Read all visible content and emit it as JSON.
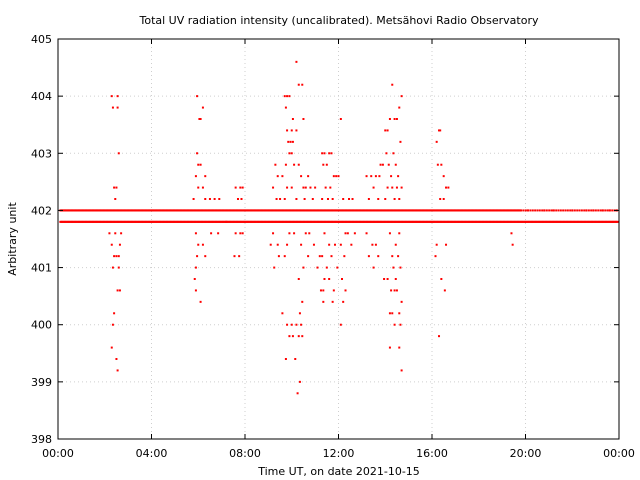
{
  "chart_data": {
    "type": "scatter",
    "title": "Total UV radiation intensity (uncalibrated). Metsähovi Radio Observatory",
    "xlabel": "Time UT, on date 2021-10-15",
    "ylabel": "Arbitrary unit",
    "x_unit": "hours UT",
    "xlim": [
      0,
      24
    ],
    "ylim": [
      398,
      405
    ],
    "x_ticks": [
      0,
      4,
      8,
      12,
      16,
      20,
      24
    ],
    "x_tick_labels": [
      "00:00",
      "04:00",
      "08:00",
      "12:00",
      "16:00",
      "20:00",
      "00:00"
    ],
    "y_ticks": [
      398,
      399,
      400,
      401,
      402,
      403,
      404,
      405
    ],
    "y_tick_labels": [
      "398",
      "399",
      "400",
      "401",
      "402",
      "403",
      "404",
      "405"
    ],
    "grid": true,
    "color": "#ff0000",
    "baseline_levels": [
      401.8,
      402.0
    ],
    "sample_interval_hours": 0.0333,
    "series": [
      {
        "values": [
          [
            2.3,
            404.0
          ],
          [
            2.35,
            403.8
          ],
          [
            2.55,
            404.0
          ],
          [
            2.55,
            403.8
          ],
          [
            2.6,
            403.0
          ],
          [
            2.4,
            402.4
          ],
          [
            2.5,
            402.4
          ],
          [
            2.45,
            401.6
          ],
          [
            2.4,
            401.2
          ],
          [
            2.35,
            401.0
          ],
          [
            2.5,
            401.2
          ],
          [
            2.6,
            401.0
          ],
          [
            2.55,
            400.6
          ],
          [
            2.65,
            400.6
          ],
          [
            2.4,
            400.2
          ],
          [
            2.35,
            400.0
          ],
          [
            2.3,
            399.6
          ],
          [
            2.5,
            399.4
          ],
          [
            2.55,
            399.2
          ],
          [
            2.3,
            401.4
          ],
          [
            2.65,
            401.4
          ],
          [
            2.6,
            401.2
          ],
          [
            2.2,
            401.6
          ],
          [
            2.7,
            401.6
          ],
          [
            2.45,
            402.2
          ],
          [
            5.95,
            404.0
          ],
          [
            6.05,
            403.6
          ],
          [
            6.1,
            403.6
          ],
          [
            6.2,
            403.8
          ],
          [
            5.95,
            403.0
          ],
          [
            6.0,
            402.8
          ],
          [
            6.1,
            402.8
          ],
          [
            6.3,
            402.6
          ],
          [
            5.9,
            402.6
          ],
          [
            6.2,
            402.4
          ],
          [
            6.0,
            402.4
          ],
          [
            6.3,
            402.2
          ],
          [
            5.8,
            402.2
          ],
          [
            5.9,
            401.6
          ],
          [
            6.0,
            401.4
          ],
          [
            6.2,
            401.4
          ],
          [
            5.95,
            401.2
          ],
          [
            5.9,
            401.0
          ],
          [
            5.85,
            400.8
          ],
          [
            5.9,
            400.6
          ],
          [
            6.1,
            400.4
          ],
          [
            6.3,
            401.2
          ],
          [
            6.5,
            402.2
          ],
          [
            6.7,
            402.2
          ],
          [
            6.9,
            402.2
          ],
          [
            6.55,
            401.6
          ],
          [
            6.85,
            401.6
          ],
          [
            7.2,
            401.8
          ],
          [
            7.6,
            402.4
          ],
          [
            7.8,
            402.4
          ],
          [
            7.9,
            402.4
          ],
          [
            7.7,
            402.2
          ],
          [
            7.85,
            402.2
          ],
          [
            7.6,
            401.6
          ],
          [
            7.8,
            401.6
          ],
          [
            7.9,
            401.6
          ],
          [
            7.75,
            401.2
          ],
          [
            7.55,
            401.2
          ],
          [
            9.3,
            402.8
          ],
          [
            9.4,
            402.6
          ],
          [
            9.2,
            402.4
          ],
          [
            9.35,
            402.2
          ],
          [
            9.5,
            402.2
          ],
          [
            9.2,
            401.6
          ],
          [
            9.4,
            401.4
          ],
          [
            9.1,
            401.4
          ],
          [
            9.25,
            401.0
          ],
          [
            9.45,
            401.2
          ],
          [
            9.7,
            404.0
          ],
          [
            9.8,
            404.0
          ],
          [
            9.9,
            404.0
          ],
          [
            9.75,
            403.8
          ],
          [
            10.05,
            403.6
          ],
          [
            10.2,
            404.6
          ],
          [
            10.3,
            404.2
          ],
          [
            10.45,
            404.2
          ],
          [
            10.5,
            403.6
          ],
          [
            9.8,
            403.4
          ],
          [
            10.0,
            403.4
          ],
          [
            10.2,
            403.4
          ],
          [
            9.85,
            403.2
          ],
          [
            9.95,
            403.2
          ],
          [
            10.05,
            403.2
          ],
          [
            9.9,
            403.0
          ],
          [
            10.0,
            403.0
          ],
          [
            9.75,
            402.8
          ],
          [
            10.1,
            402.8
          ],
          [
            10.3,
            402.8
          ],
          [
            9.6,
            402.6
          ],
          [
            10.4,
            402.6
          ],
          [
            9.8,
            402.4
          ],
          [
            10.0,
            402.4
          ],
          [
            10.5,
            402.4
          ],
          [
            10.6,
            402.4
          ],
          [
            9.7,
            402.2
          ],
          [
            10.2,
            402.2
          ],
          [
            10.55,
            402.2
          ],
          [
            9.9,
            401.6
          ],
          [
            10.1,
            401.6
          ],
          [
            10.6,
            401.6
          ],
          [
            9.8,
            401.4
          ],
          [
            10.4,
            401.4
          ],
          [
            10.7,
            401.2
          ],
          [
            9.7,
            401.2
          ],
          [
            10.5,
            401.0
          ],
          [
            10.3,
            400.8
          ],
          [
            10.45,
            400.4
          ],
          [
            9.6,
            400.2
          ],
          [
            10.2,
            400.0
          ],
          [
            10.4,
            400.0
          ],
          [
            9.8,
            400.0
          ],
          [
            10.0,
            400.0
          ],
          [
            10.35,
            400.2
          ],
          [
            9.9,
            399.8
          ],
          [
            10.05,
            399.8
          ],
          [
            10.3,
            399.8
          ],
          [
            10.45,
            399.8
          ],
          [
            9.75,
            399.4
          ],
          [
            10.15,
            399.4
          ],
          [
            10.35,
            399.0
          ],
          [
            10.25,
            398.8
          ],
          [
            10.7,
            402.6
          ],
          [
            10.8,
            402.4
          ],
          [
            10.9,
            402.2
          ],
          [
            11.0,
            402.4
          ],
          [
            10.75,
            401.6
          ],
          [
            10.95,
            401.4
          ],
          [
            11.1,
            401.0
          ],
          [
            11.2,
            401.2
          ],
          [
            11.3,
            403.0
          ],
          [
            11.4,
            403.0
          ],
          [
            11.6,
            403.0
          ],
          [
            11.7,
            403.0
          ],
          [
            11.35,
            402.8
          ],
          [
            11.5,
            402.8
          ],
          [
            11.8,
            402.6
          ],
          [
            11.45,
            402.4
          ],
          [
            11.65,
            402.4
          ],
          [
            11.9,
            402.6
          ],
          [
            12.0,
            402.6
          ],
          [
            11.3,
            402.2
          ],
          [
            11.55,
            402.2
          ],
          [
            11.75,
            402.2
          ],
          [
            11.4,
            401.6
          ],
          [
            11.6,
            401.4
          ],
          [
            11.85,
            401.4
          ],
          [
            11.3,
            401.2
          ],
          [
            11.7,
            401.2
          ],
          [
            11.5,
            401.0
          ],
          [
            11.95,
            401.0
          ],
          [
            11.4,
            400.8
          ],
          [
            11.6,
            400.8
          ],
          [
            11.25,
            400.6
          ],
          [
            11.35,
            400.6
          ],
          [
            11.8,
            400.6
          ],
          [
            11.35,
            400.4
          ],
          [
            11.75,
            400.4
          ],
          [
            12.1,
            403.6
          ],
          [
            12.2,
            402.2
          ],
          [
            12.3,
            401.6
          ],
          [
            12.1,
            401.4
          ],
          [
            12.25,
            401.2
          ],
          [
            12.15,
            400.8
          ],
          [
            12.3,
            400.6
          ],
          [
            12.2,
            400.4
          ],
          [
            12.1,
            400.0
          ],
          [
            12.45,
            402.2
          ],
          [
            12.6,
            402.2
          ],
          [
            12.4,
            401.6
          ],
          [
            12.55,
            401.4
          ],
          [
            12.7,
            401.6
          ],
          [
            13.2,
            402.6
          ],
          [
            13.4,
            402.6
          ],
          [
            13.6,
            402.6
          ],
          [
            13.5,
            402.4
          ],
          [
            13.3,
            402.2
          ],
          [
            13.7,
            402.2
          ],
          [
            13.2,
            401.6
          ],
          [
            13.45,
            401.4
          ],
          [
            13.6,
            401.4
          ],
          [
            13.3,
            401.2
          ],
          [
            13.5,
            401.0
          ],
          [
            13.7,
            401.2
          ],
          [
            13.8,
            402.8
          ],
          [
            13.9,
            402.8
          ],
          [
            13.75,
            402.6
          ],
          [
            14.0,
            403.4
          ],
          [
            14.1,
            403.4
          ],
          [
            14.2,
            403.6
          ],
          [
            14.3,
            404.2
          ],
          [
            14.4,
            403.6
          ],
          [
            14.5,
            403.6
          ],
          [
            14.6,
            403.8
          ],
          [
            14.7,
            404.0
          ],
          [
            14.05,
            403.0
          ],
          [
            14.35,
            403.0
          ],
          [
            14.65,
            403.2
          ],
          [
            14.15,
            402.8
          ],
          [
            14.45,
            402.8
          ],
          [
            14.25,
            402.6
          ],
          [
            14.55,
            402.6
          ],
          [
            14.1,
            402.4
          ],
          [
            14.3,
            402.4
          ],
          [
            14.5,
            402.4
          ],
          [
            14.7,
            402.4
          ],
          [
            14.0,
            402.2
          ],
          [
            14.4,
            402.2
          ],
          [
            14.6,
            402.2
          ],
          [
            14.2,
            401.6
          ],
          [
            14.45,
            401.4
          ],
          [
            14.6,
            401.6
          ],
          [
            14.3,
            401.2
          ],
          [
            14.55,
            401.2
          ],
          [
            14.35,
            401.0
          ],
          [
            14.65,
            401.0
          ],
          [
            14.45,
            400.8
          ],
          [
            14.4,
            400.6
          ],
          [
            14.5,
            400.6
          ],
          [
            14.7,
            400.4
          ],
          [
            14.2,
            400.2
          ],
          [
            14.3,
            400.2
          ],
          [
            14.6,
            400.2
          ],
          [
            14.4,
            400.0
          ],
          [
            14.65,
            400.0
          ],
          [
            14.2,
            399.6
          ],
          [
            14.6,
            399.6
          ],
          [
            14.7,
            399.2
          ],
          [
            13.95,
            400.8
          ],
          [
            14.1,
            400.8
          ],
          [
            14.25,
            400.6
          ],
          [
            16.2,
            403.2
          ],
          [
            16.3,
            403.4
          ],
          [
            16.35,
            403.4
          ],
          [
            16.25,
            402.8
          ],
          [
            16.4,
            402.8
          ],
          [
            16.5,
            402.6
          ],
          [
            16.6,
            402.4
          ],
          [
            16.7,
            402.4
          ],
          [
            16.35,
            402.2
          ],
          [
            16.5,
            402.2
          ],
          [
            16.2,
            401.4
          ],
          [
            16.6,
            401.4
          ],
          [
            16.15,
            401.2
          ],
          [
            16.4,
            400.8
          ],
          [
            16.55,
            400.6
          ],
          [
            16.3,
            399.8
          ],
          [
            19.4,
            401.6
          ],
          [
            19.45,
            401.4
          ],
          [
            20.1,
            402.0
          ],
          [
            20.8,
            402.0
          ],
          [
            21.2,
            402.0
          ],
          [
            22.0,
            402.0
          ],
          [
            22.6,
            402.0
          ],
          [
            22.9,
            402.0
          ],
          [
            23.3,
            402.0
          ],
          [
            23.6,
            402.0
          ],
          [
            23.9,
            402.0
          ]
        ]
      }
    ]
  }
}
